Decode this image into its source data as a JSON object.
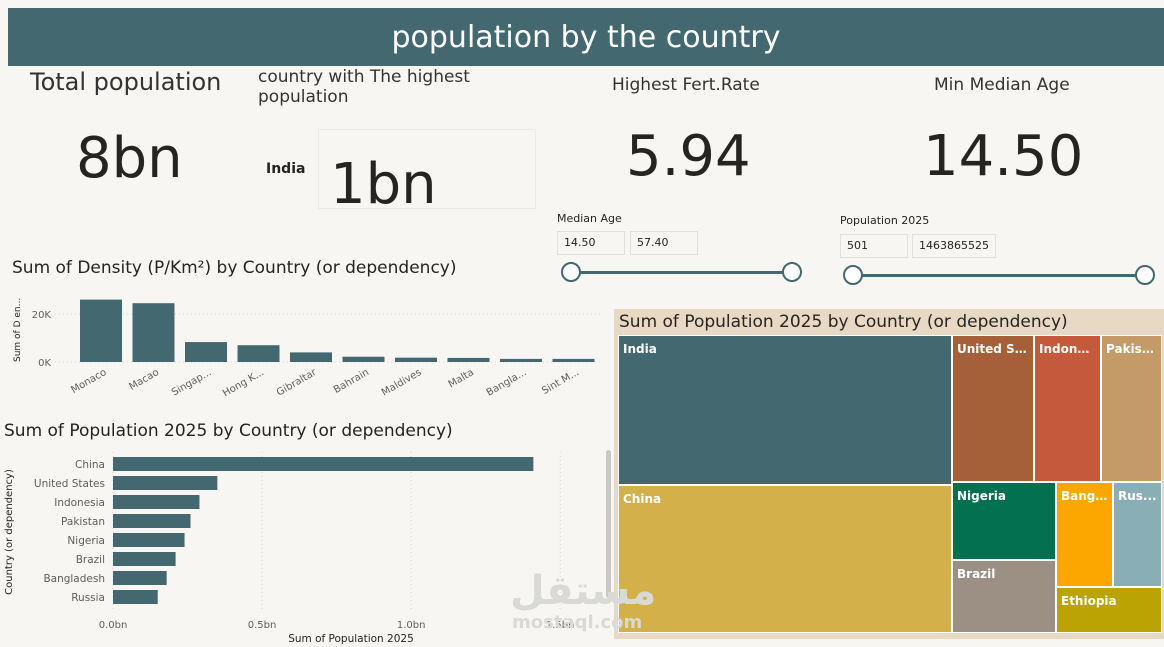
{
  "header": {
    "title": "population by the country"
  },
  "cards": {
    "total": {
      "title": "Total population",
      "value": "8bn"
    },
    "highest": {
      "title": "country with The highest population",
      "country": "India",
      "value": "1bn"
    },
    "fert": {
      "title": "Highest Fert.Rate",
      "value": "5.94"
    },
    "median": {
      "title": "Min Median Age",
      "value": "14.50"
    }
  },
  "slicers": {
    "median_age": {
      "label": "Median Age",
      "min": "14.50",
      "max": "57.40"
    },
    "population": {
      "label": "Population 2025",
      "min": "501",
      "max": "1463865525"
    }
  },
  "watermark": {
    "brand": "مستقل",
    "site": "mostaql.com"
  },
  "colors": {
    "teal": "#43686f",
    "background": "#f7f6f2",
    "treemap_bg": "#e8d9c4"
  },
  "chart_data": [
    {
      "type": "bar",
      "title": "Sum of Density (P/Km²) by Country (or dependency)",
      "ylabel": "Sum of D en...",
      "categories": [
        "Monaco",
        "Macao",
        "Singap...",
        "Hong K...",
        "Gibraltar",
        "Bahrain",
        "Maldives",
        "Malta",
        "Bangla...",
        "Sint M..."
      ],
      "values": [
        26000,
        24500,
        8300,
        7000,
        4000,
        2200,
        1800,
        1700,
        1300,
        1300
      ],
      "yticks": [
        "0K",
        "20K"
      ],
      "ylim": [
        0,
        30000
      ]
    },
    {
      "type": "bar",
      "orientation": "horizontal",
      "title": "Sum of Population 2025 by Country (or dependency)",
      "xlabel": "Sum of Population 2025",
      "ylabel": "Country (or dependency)",
      "categories": [
        "China",
        "United States",
        "Indonesia",
        "Pakistan",
        "Nigeria",
        "Brazil",
        "Bangladesh",
        "Russia"
      ],
      "values": [
        1.41,
        0.35,
        0.29,
        0.26,
        0.24,
        0.21,
        0.18,
        0.15
      ],
      "xticks": [
        "0.0bn",
        "0.5bn",
        "1.0bn",
        "1.5bn"
      ],
      "xlim": [
        0,
        1.6
      ]
    },
    {
      "type": "treemap",
      "title": "Sum of Population 2025 by Country (or dependency)",
      "items": [
        {
          "label": "India",
          "value": 1.46,
          "color": "#43686f"
        },
        {
          "label": "China",
          "value": 1.41,
          "color": "#d3b04a"
        },
        {
          "label": "United St...",
          "value": 0.35,
          "color": "#a5603a"
        },
        {
          "label": "Indone...",
          "value": 0.29,
          "color": "#c4593b"
        },
        {
          "label": "Pakist...",
          "value": 0.26,
          "color": "#c39a68"
        },
        {
          "label": "Nigeria",
          "value": 0.24,
          "color": "#037050"
        },
        {
          "label": "Brazil",
          "value": 0.21,
          "color": "#9c8f84"
        },
        {
          "label": "Bangl...",
          "value": 0.18,
          "color": "#fba700"
        },
        {
          "label": "Rus...",
          "value": 0.15,
          "color": "#8aaeb6"
        },
        {
          "label": "Ethiopia",
          "value": 0.14,
          "color": "#bca304"
        }
      ]
    }
  ]
}
